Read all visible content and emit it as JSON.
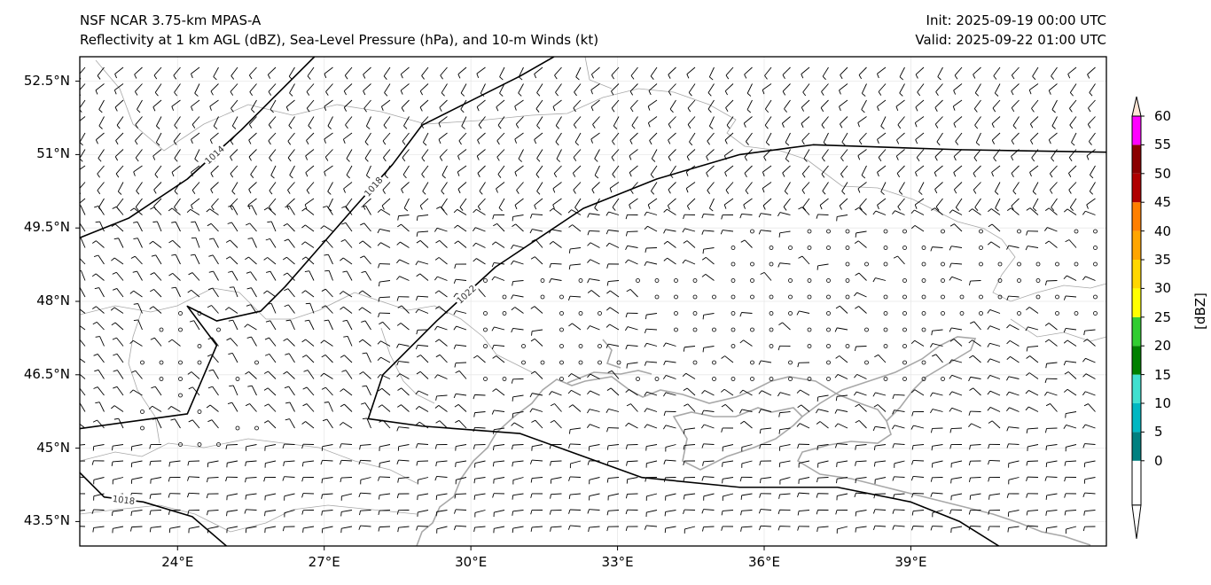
{
  "header": {
    "title_line1": "NSF NCAR 3.75-km MPAS-A",
    "title_line2": "Reflectivity at 1 km AGL (dBZ), Sea-Level Pressure (hPa), and 10-m Winds (kt)",
    "init": "Init: 2025-09-19 00:00 UTC",
    "valid": "Valid: 2025-09-22 01:00 UTC"
  },
  "map": {
    "lon_range": [
      22.0,
      43.0
    ],
    "lat_range": [
      43.0,
      53.0
    ],
    "lat_ticks": [
      {
        "value": 52.5,
        "label": "52.5°N"
      },
      {
        "value": 51.0,
        "label": "51°N"
      },
      {
        "value": 49.5,
        "label": "49.5°N"
      },
      {
        "value": 48.0,
        "label": "48°N"
      },
      {
        "value": 46.5,
        "label": "46.5°N"
      },
      {
        "value": 45.0,
        "label": "45°N"
      },
      {
        "value": 43.5,
        "label": "43.5°N"
      }
    ],
    "lon_ticks": [
      {
        "value": 24,
        "label": "24°E"
      },
      {
        "value": 27,
        "label": "27°E"
      },
      {
        "value": 30,
        "label": "30°E"
      },
      {
        "value": 33,
        "label": "33°E"
      },
      {
        "value": 36,
        "label": "36°E"
      },
      {
        "value": 39,
        "label": "39°E"
      }
    ],
    "isobars": [
      {
        "value": 1014,
        "label": "1014",
        "points": [
          [
            22,
            49.3
          ],
          [
            23,
            49.7
          ],
          [
            24.2,
            50.5
          ],
          [
            25.3,
            51.5
          ],
          [
            26,
            52.2
          ],
          [
            26.8,
            53
          ]
        ]
      },
      {
        "value": 1018,
        "label": "1018",
        "points": [
          [
            31.7,
            53
          ],
          [
            31,
            52.6
          ],
          [
            30,
            52.1
          ],
          [
            29,
            51.6
          ],
          [
            28.4,
            50.8
          ],
          [
            27.6,
            49.9
          ],
          [
            26.9,
            49.1
          ],
          [
            26.2,
            48.3
          ],
          [
            25.7,
            47.8
          ],
          [
            24.8,
            47.6
          ],
          [
            24.2,
            47.9
          ],
          [
            24.8,
            47.1
          ],
          [
            24.2,
            45.7
          ],
          [
            22,
            45.4
          ]
        ]
      },
      {
        "value": 1018,
        "label": "1018",
        "points": [
          [
            22,
            44.5
          ],
          [
            22.5,
            44.0
          ],
          [
            23.3,
            43.9
          ],
          [
            24.3,
            43.6
          ],
          [
            25.0,
            43.0
          ]
        ]
      },
      {
        "value": 1022,
        "label": "1022",
        "points": [
          [
            43,
            51.05
          ],
          [
            40,
            51.1
          ],
          [
            37,
            51.2
          ],
          [
            35.5,
            51.0
          ],
          [
            33.8,
            50.5
          ],
          [
            32.3,
            49.9
          ],
          [
            30.5,
            48.7
          ],
          [
            29.3,
            47.6
          ],
          [
            28.2,
            46.5
          ],
          [
            27.9,
            45.6
          ],
          [
            29,
            45.45
          ],
          [
            31,
            45.3
          ],
          [
            33.5,
            44.4
          ],
          [
            35.5,
            44.2
          ],
          [
            37.5,
            44.2
          ],
          [
            39,
            43.9
          ],
          [
            40,
            43.5
          ],
          [
            40.8,
            43.0
          ]
        ]
      }
    ],
    "colorbar": {
      "label": "[dBZ]",
      "ticks": [
        "0",
        "5",
        "10",
        "15",
        "20",
        "25",
        "30",
        "35",
        "40",
        "45",
        "50",
        "55",
        "60"
      ],
      "colors": [
        "#ffffff",
        "#008080",
        "#00b7c2",
        "#40e0d0",
        "#008000",
        "#32cd32",
        "#ffff00",
        "#ffd700",
        "#ffa500",
        "#ff7f00",
        "#b00000",
        "#8b0000",
        "#ff00ff",
        "#ffe4d4"
      ]
    }
  }
}
